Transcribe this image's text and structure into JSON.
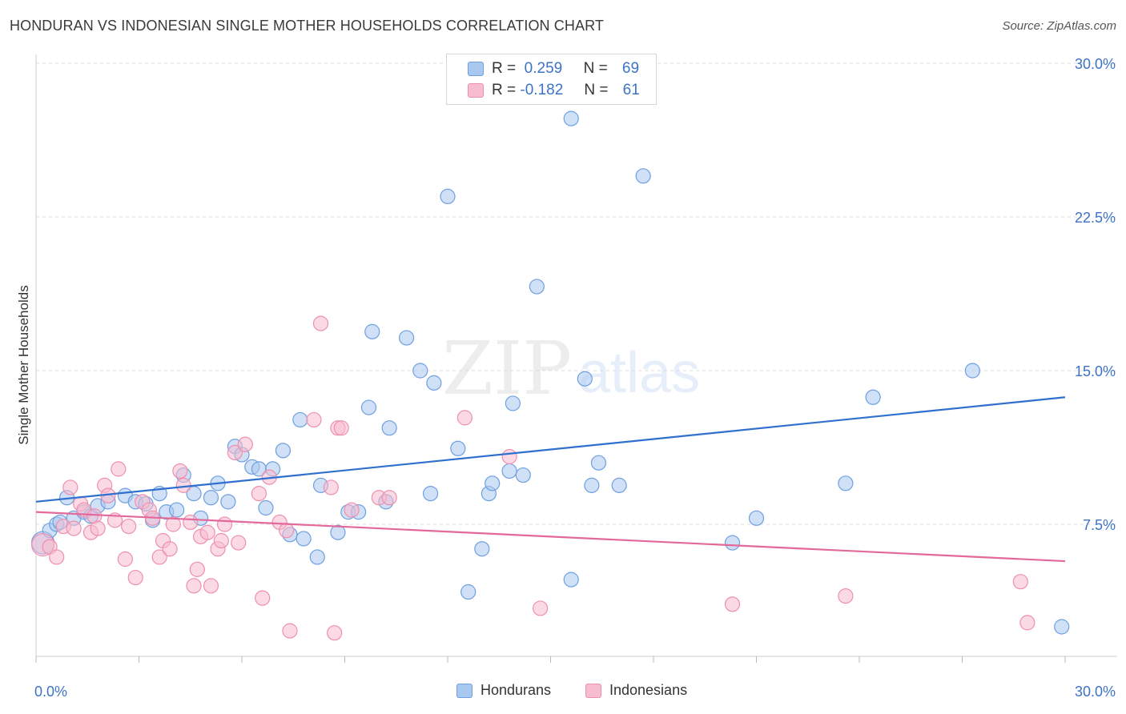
{
  "title": "HONDURAN VS INDONESIAN SINGLE MOTHER HOUSEHOLDS CORRELATION CHART",
  "source": "Source: ZipAtlas.com",
  "watermark": {
    "zip": "ZIP",
    "atlas": "atlas"
  },
  "legend_top": [
    {
      "r_label": "R =",
      "r_value": "0.259",
      "n_label": "N =",
      "n_value": "69"
    },
    {
      "r_label": "R =",
      "r_value": "-0.182",
      "n_label": "N =",
      "n_value": "61"
    }
  ],
  "colors": {
    "honduran_fill": "#a9c8f0",
    "honduran_stroke": "#6e9fe0",
    "honduran_line": "#2f6fce",
    "indonesian_fill": "#f7bcd0",
    "indonesian_stroke": "#ee8fae",
    "indonesian_line": "#e2699a",
    "tick": "#3d73c7",
    "grid": "#dddddd"
  },
  "chart_data": {
    "type": "scatter",
    "title": "HONDURAN VS INDONESIAN SINGLE MOTHER HOUSEHOLDS CORRELATION CHART",
    "xlabel": "",
    "ylabel": "Single Mother Households",
    "xlim": [
      0,
      30
    ],
    "ylim": [
      0,
      30.7
    ],
    "x_tick_labels": [
      "0.0%",
      "30.0%"
    ],
    "y_ticks": [
      7.5,
      15.0,
      22.5,
      30.0
    ],
    "y_tick_labels": [
      "7.5%",
      "15.0%",
      "22.5%",
      "30.0%"
    ],
    "grid": "horizontal dashed",
    "legend_position": "top-center and bottom",
    "series": [
      {
        "name": "Hondurans",
        "R": 0.259,
        "N": 69,
        "trend": {
          "x": [
            0,
            30
          ],
          "y": [
            8.6,
            13.7
          ]
        },
        "points": [
          [
            0.2,
            6.6
          ],
          [
            0.4,
            7.2
          ],
          [
            0.6,
            7.5
          ],
          [
            0.7,
            7.6
          ],
          [
            0.9,
            8.8
          ],
          [
            1.1,
            7.8
          ],
          [
            1.4,
            8.1
          ],
          [
            1.6,
            7.9
          ],
          [
            1.8,
            8.4
          ],
          [
            2.1,
            8.6
          ],
          [
            2.6,
            8.9
          ],
          [
            2.9,
            8.6
          ],
          [
            3.2,
            8.5
          ],
          [
            3.4,
            7.7
          ],
          [
            3.6,
            9.0
          ],
          [
            3.8,
            8.1
          ],
          [
            4.1,
            8.2
          ],
          [
            4.3,
            9.9
          ],
          [
            4.6,
            9.0
          ],
          [
            4.8,
            7.8
          ],
          [
            5.1,
            8.8
          ],
          [
            5.3,
            9.5
          ],
          [
            5.6,
            8.6
          ],
          [
            5.8,
            11.3
          ],
          [
            6.0,
            10.9
          ],
          [
            6.3,
            10.3
          ],
          [
            6.5,
            10.2
          ],
          [
            6.7,
            8.3
          ],
          [
            6.9,
            10.2
          ],
          [
            7.2,
            11.1
          ],
          [
            7.4,
            7.0
          ],
          [
            7.7,
            12.6
          ],
          [
            7.8,
            6.8
          ],
          [
            8.2,
            5.9
          ],
          [
            8.3,
            9.4
          ],
          [
            8.8,
            7.1
          ],
          [
            9.1,
            8.1
          ],
          [
            9.4,
            8.1
          ],
          [
            9.7,
            13.2
          ],
          [
            9.8,
            16.9
          ],
          [
            10.2,
            8.6
          ],
          [
            10.3,
            12.2
          ],
          [
            10.8,
            16.6
          ],
          [
            11.2,
            15.0
          ],
          [
            11.5,
            9.0
          ],
          [
            11.6,
            14.4
          ],
          [
            12.0,
            23.5
          ],
          [
            12.3,
            11.2
          ],
          [
            12.6,
            4.2
          ],
          [
            13.0,
            6.3
          ],
          [
            13.2,
            9.0
          ],
          [
            13.3,
            9.5
          ],
          [
            13.8,
            10.1
          ],
          [
            13.9,
            13.4
          ],
          [
            14.2,
            9.9
          ],
          [
            14.6,
            19.1
          ],
          [
            15.6,
            27.3
          ],
          [
            15.6,
            4.8
          ],
          [
            16.0,
            14.6
          ],
          [
            16.2,
            9.4
          ],
          [
            16.4,
            10.5
          ],
          [
            17.0,
            9.4
          ],
          [
            17.7,
            24.5
          ],
          [
            20.3,
            6.6
          ],
          [
            21.0,
            7.8
          ],
          [
            23.6,
            9.5
          ],
          [
            24.4,
            13.7
          ],
          [
            27.3,
            15.0
          ],
          [
            29.9,
            2.5
          ]
        ]
      },
      {
        "name": "Indonesians",
        "R": -0.182,
        "N": 61,
        "trend": {
          "x": [
            0,
            30
          ],
          "y": [
            8.1,
            5.7
          ]
        },
        "points": [
          [
            0.2,
            6.5
          ],
          [
            0.4,
            6.4
          ],
          [
            0.6,
            5.9
          ],
          [
            0.8,
            7.4
          ],
          [
            1.0,
            9.3
          ],
          [
            1.1,
            7.3
          ],
          [
            1.3,
            8.5
          ],
          [
            1.4,
            8.2
          ],
          [
            1.6,
            7.1
          ],
          [
            1.7,
            7.9
          ],
          [
            1.8,
            7.3
          ],
          [
            2.0,
            9.4
          ],
          [
            2.1,
            8.9
          ],
          [
            2.3,
            7.7
          ],
          [
            2.4,
            10.2
          ],
          [
            2.6,
            5.8
          ],
          [
            2.7,
            7.4
          ],
          [
            2.9,
            4.9
          ],
          [
            3.1,
            8.6
          ],
          [
            3.3,
            8.2
          ],
          [
            3.4,
            7.8
          ],
          [
            3.6,
            5.9
          ],
          [
            3.7,
            6.7
          ],
          [
            3.9,
            6.3
          ],
          [
            4.0,
            7.5
          ],
          [
            4.2,
            10.1
          ],
          [
            4.3,
            9.4
          ],
          [
            4.5,
            7.6
          ],
          [
            4.6,
            4.5
          ],
          [
            4.7,
            5.3
          ],
          [
            4.8,
            6.9
          ],
          [
            5.0,
            7.1
          ],
          [
            5.1,
            4.5
          ],
          [
            5.3,
            6.3
          ],
          [
            5.4,
            6.7
          ],
          [
            5.5,
            7.5
          ],
          [
            5.8,
            11.0
          ],
          [
            5.9,
            6.6
          ],
          [
            6.1,
            11.4
          ],
          [
            6.5,
            9.0
          ],
          [
            6.6,
            3.9
          ],
          [
            6.8,
            9.8
          ],
          [
            7.1,
            7.6
          ],
          [
            7.3,
            7.2
          ],
          [
            7.4,
            2.3
          ],
          [
            8.1,
            12.6
          ],
          [
            8.3,
            17.3
          ],
          [
            8.6,
            9.3
          ],
          [
            8.7,
            2.2
          ],
          [
            8.8,
            12.2
          ],
          [
            8.9,
            12.2
          ],
          [
            9.2,
            8.2
          ],
          [
            10.0,
            8.8
          ],
          [
            10.3,
            8.8
          ],
          [
            12.5,
            12.7
          ],
          [
            13.8,
            10.8
          ],
          [
            14.7,
            3.4
          ],
          [
            20.3,
            3.6
          ],
          [
            23.6,
            4.0
          ],
          [
            28.7,
            4.7
          ],
          [
            28.9,
            2.7
          ]
        ]
      }
    ]
  }
}
